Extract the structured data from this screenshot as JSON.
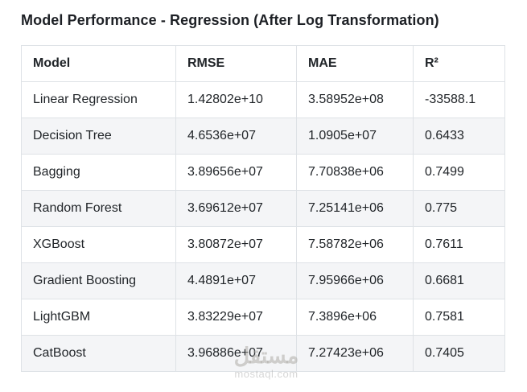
{
  "title": "Model Performance - Regression (After Log Transformation)",
  "colors": {
    "background": "#ffffff",
    "border": "#dee2e6",
    "stripe": "#f4f5f7",
    "text": "#212529",
    "title": "#1d2025",
    "watermark": "#b4b4b4"
  },
  "table": {
    "headers": [
      "Model",
      "RMSE",
      "MAE",
      "R²"
    ],
    "rows": [
      {
        "model": "Linear Regression",
        "rmse": "1.42802e+10",
        "mae": "3.58952e+08",
        "r2": "-33588.1"
      },
      {
        "model": "Decision Tree",
        "rmse": "4.6536e+07",
        "mae": "1.0905e+07",
        "r2": "0.6433"
      },
      {
        "model": "Bagging",
        "rmse": "3.89656e+07",
        "mae": "7.70838e+06",
        "r2": "0.7499"
      },
      {
        "model": "Random Forest",
        "rmse": "3.69612e+07",
        "mae": "7.25141e+06",
        "r2": "0.775"
      },
      {
        "model": "XGBoost",
        "rmse": "3.80872e+07",
        "mae": "7.58782e+06",
        "r2": "0.7611"
      },
      {
        "model": "Gradient Boosting",
        "rmse": "4.4891e+07",
        "mae": "7.95966e+06",
        "r2": "0.6681"
      },
      {
        "model": "LightGBM",
        "rmse": "3.83229e+07",
        "mae": "7.3896e+06",
        "r2": "0.7581"
      },
      {
        "model": "CatBoost",
        "rmse": "3.96886e+07",
        "mae": "7.27423e+06",
        "r2": "0.7405"
      }
    ]
  },
  "watermark": {
    "arabic": "مستقل",
    "site": "mostaql.com"
  },
  "chart_data": {
    "type": "table",
    "title": "Model Performance - Regression (After Log Transformation)",
    "columns": [
      "Model",
      "RMSE",
      "MAE",
      "R2"
    ],
    "rows": [
      [
        "Linear Regression",
        14280200000,
        358952000,
        -33588.1
      ],
      [
        "Decision Tree",
        46536000,
        10905000,
        0.6433
      ],
      [
        "Bagging",
        38965600,
        7708380,
        0.7499
      ],
      [
        "Random Forest",
        36961200,
        7251410,
        0.775
      ],
      [
        "XGBoost",
        38087200,
        7587820,
        0.7611
      ],
      [
        "Gradient Boosting",
        44891000,
        7959660,
        0.6681
      ],
      [
        "LightGBM",
        38322900,
        7389600,
        0.7581
      ],
      [
        "CatBoost",
        39688600,
        7274230,
        0.7405
      ]
    ],
    "notes": "Numeric values shown on screen in scientific notation; striped rows; grid borders on"
  }
}
